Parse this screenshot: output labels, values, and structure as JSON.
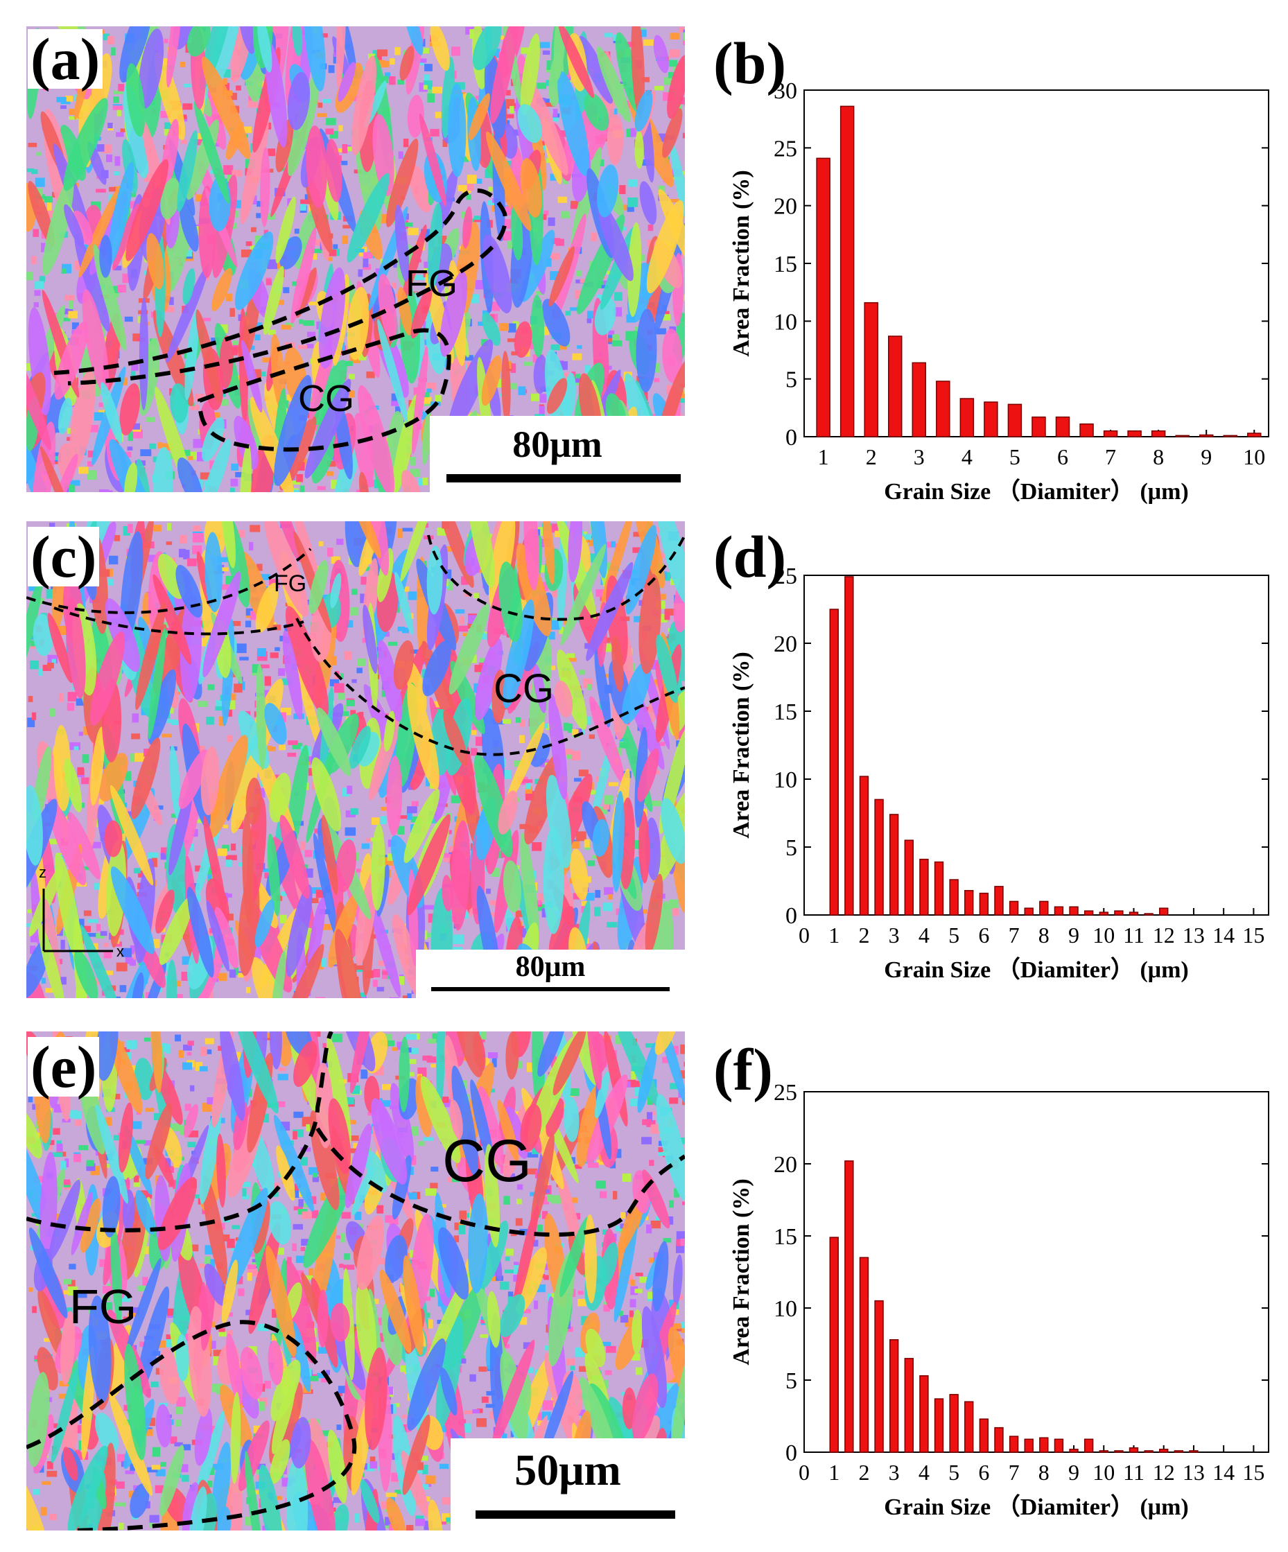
{
  "panels": {
    "a": {
      "label": "(a)",
      "scale": "80μm",
      "regions": {
        "fg": "FG",
        "cg": "CG"
      }
    },
    "c": {
      "label": "(c)",
      "scale": "80μm",
      "regions": {
        "fg": "FG",
        "cg": "CG"
      },
      "axes": {
        "z": "z",
        "x": "x"
      }
    },
    "e": {
      "label": "(e)",
      "scale": "50μm",
      "regions": {
        "fg": "FG",
        "cg": "CG"
      }
    },
    "b": {
      "label": "(b)"
    },
    "d": {
      "label": "(d)"
    },
    "f": {
      "label": "(f)"
    }
  },
  "chart_data": [
    {
      "id": "b",
      "type": "bar",
      "title": "",
      "xlabel": "Grain Size （Diamiter） (μm)",
      "ylabel": "Area Fraction (%)",
      "x": [
        1,
        1.5,
        2,
        2.5,
        3,
        3.5,
        4,
        4.5,
        5,
        5.5,
        6,
        6.5,
        7,
        7.5,
        8,
        8.5,
        9,
        9.5,
        10
      ],
      "values": [
        24.1,
        28.6,
        11.6,
        8.7,
        6.4,
        4.8,
        3.3,
        3.0,
        2.8,
        1.7,
        1.7,
        1.1,
        0.5,
        0.5,
        0.5,
        0.1,
        0.15,
        0.1,
        0.3
      ],
      "xlim": [
        0.6,
        10.3
      ],
      "ylim": [
        0,
        30
      ],
      "xticks": [
        1,
        2,
        3,
        4,
        5,
        6,
        7,
        8,
        9,
        10
      ],
      "xtick_labels": [
        "1",
        "2",
        "3",
        "4",
        "5",
        "6",
        "7",
        "8",
        "9",
        "10"
      ],
      "yticks": [
        0,
        5,
        10,
        15,
        20,
        25,
        30
      ],
      "bar_color": "#ee1111"
    },
    {
      "id": "d",
      "type": "bar",
      "title": "",
      "xlabel": "Grain Size （Diamiter） (μm)",
      "ylabel": "Area Fraction (%)",
      "x": [
        1,
        1.5,
        2,
        2.5,
        3,
        3.5,
        4,
        4.5,
        5,
        5.5,
        6,
        6.5,
        7,
        7.5,
        8,
        8.5,
        9,
        9.5,
        10,
        10.5,
        11,
        11.5,
        12
      ],
      "values": [
        22.5,
        24.9,
        10.2,
        8.5,
        7.4,
        5.5,
        4.1,
        3.9,
        2.6,
        1.8,
        1.6,
        2.1,
        1.0,
        0.5,
        1.0,
        0.6,
        0.6,
        0.3,
        0.2,
        0.3,
        0.2,
        0.1,
        0.5
      ],
      "xlim": [
        0,
        15.5
      ],
      "ylim": [
        0,
        25
      ],
      "xticks": [
        0,
        1,
        2,
        3,
        4,
        5,
        6,
        7,
        8,
        9,
        10,
        11,
        12,
        13,
        14,
        15
      ],
      "xtick_labels": [
        "0",
        "1",
        "2",
        "3",
        "4",
        "5",
        "6",
        "7",
        "8",
        "9",
        "10",
        "11",
        "12",
        "13",
        "14",
        "15"
      ],
      "yticks": [
        0,
        5,
        10,
        15,
        20,
        25
      ],
      "bar_color": "#ee1111"
    },
    {
      "id": "f",
      "type": "bar",
      "title": "",
      "xlabel": "Grain Size （Diamiter） (μm)",
      "ylabel": "Area Fraction (%)",
      "x": [
        1,
        1.5,
        2,
        2.5,
        3,
        3.5,
        4,
        4.5,
        5,
        5.5,
        6,
        6.5,
        7,
        7.5,
        8,
        8.5,
        9,
        9.5,
        10,
        10.5,
        11,
        11.5,
        12,
        12.5,
        13
      ],
      "values": [
        14.9,
        20.2,
        13.5,
        10.5,
        7.8,
        6.5,
        5.3,
        3.7,
        4.0,
        3.5,
        2.3,
        1.7,
        1.1,
        0.9,
        1.0,
        0.9,
        0.2,
        0.9,
        0.1,
        0.1,
        0.3,
        0.1,
        0.2,
        0.1,
        0.1
      ],
      "xlim": [
        0,
        15.5
      ],
      "ylim": [
        0,
        25
      ],
      "xticks": [
        0,
        1,
        2,
        3,
        4,
        5,
        6,
        7,
        8,
        9,
        10,
        11,
        12,
        13,
        14,
        15
      ],
      "xtick_labels": [
        "0",
        "1",
        "2",
        "3",
        "4",
        "5",
        "6",
        "7",
        "8",
        "9",
        "10",
        "11",
        "12",
        "13",
        "14",
        "15"
      ],
      "yticks": [
        0,
        5,
        10,
        15,
        20,
        25
      ],
      "bar_color": "#ee1111"
    }
  ]
}
